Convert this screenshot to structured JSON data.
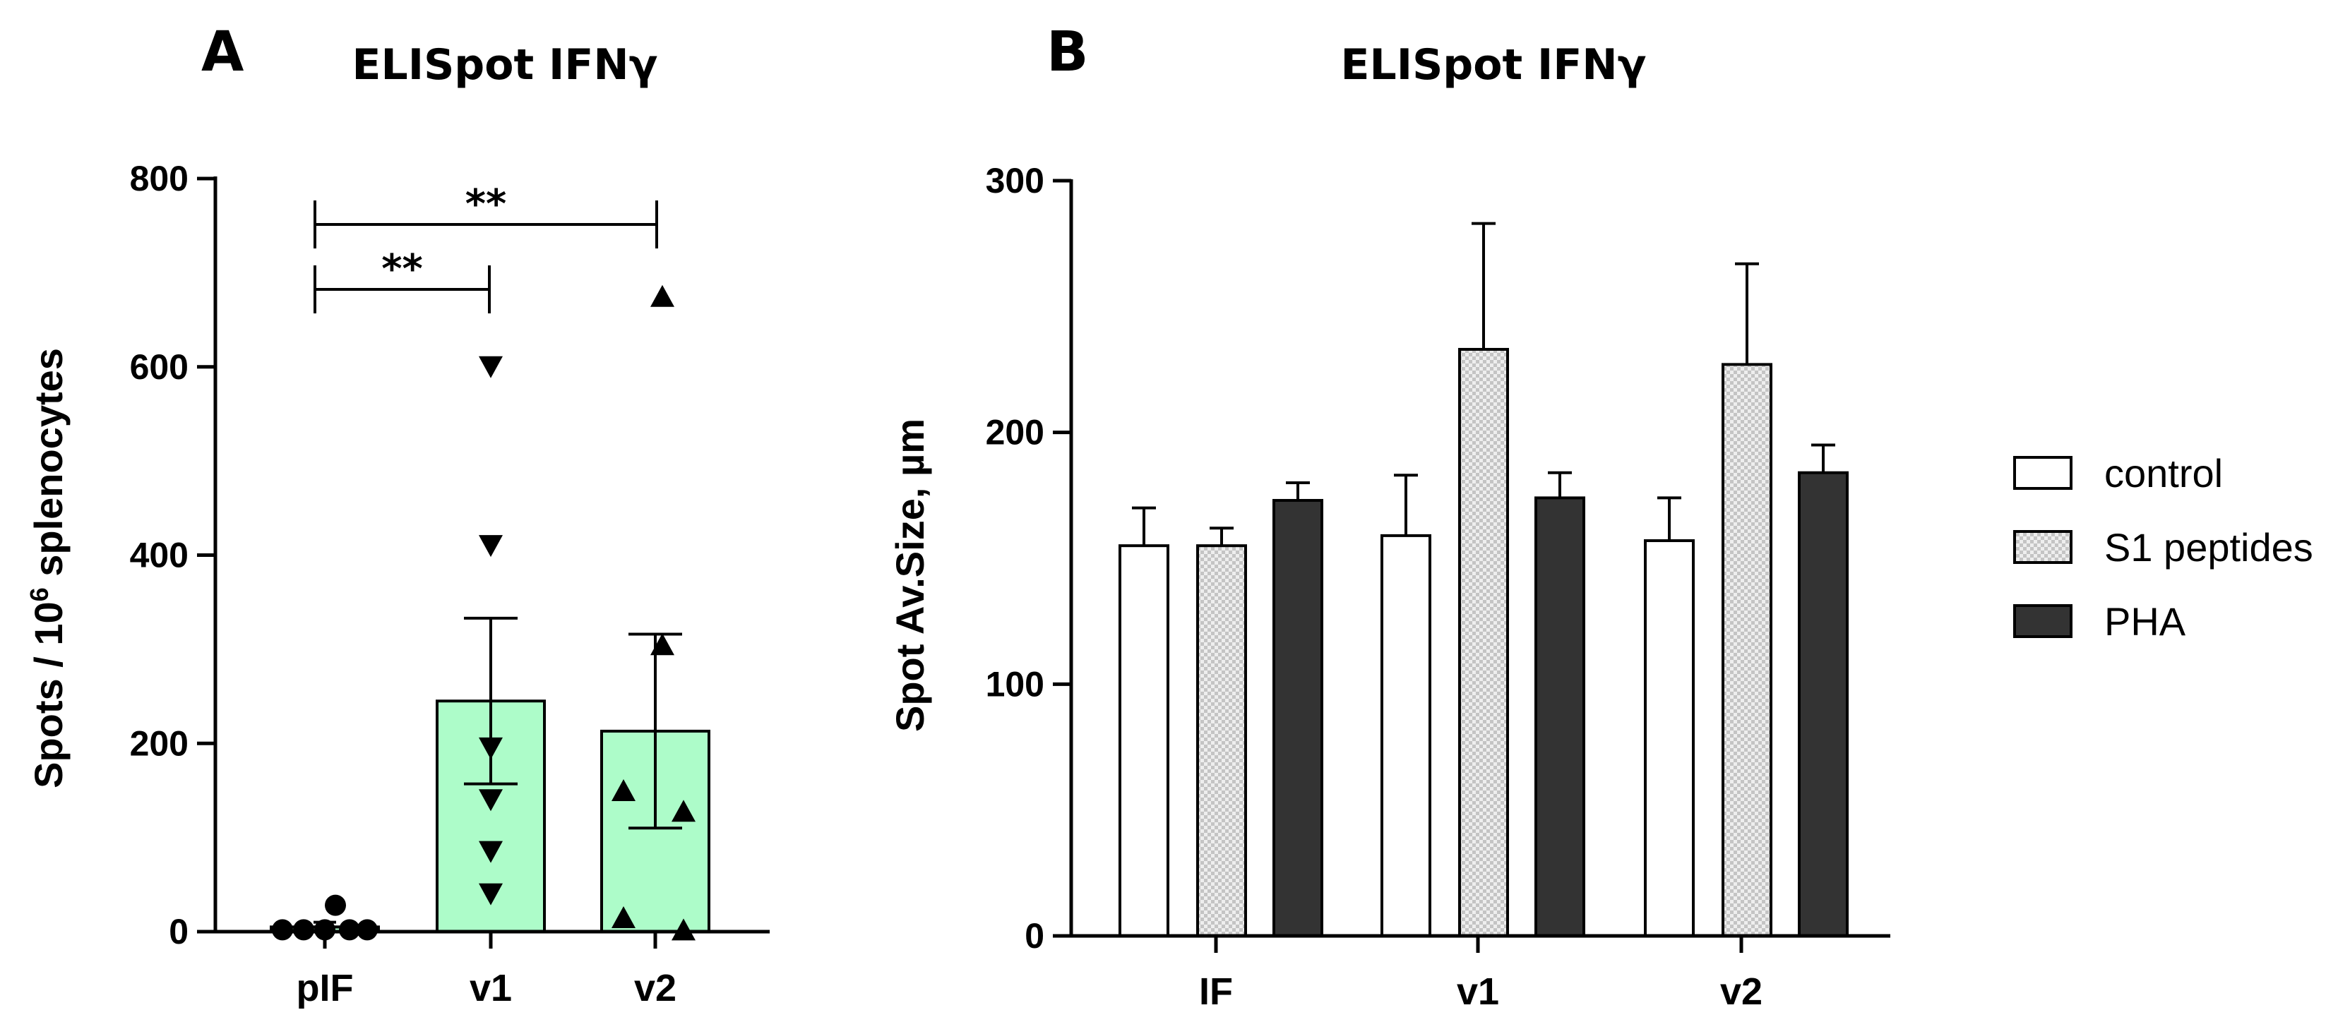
{
  "colors": {
    "green_bar": "#adfcc9",
    "control": "#ffffff",
    "s1_peptides": "#dedede",
    "pha": "#333333",
    "axis": "#000000"
  },
  "chart_data": [
    {
      "panel": "A",
      "type": "bar",
      "title": "ELISpot IFNγ",
      "xlabel": "",
      "ylabel": "Spots / 10^6 splenocytes",
      "ylabel_parts": {
        "pre": "Spots / 10",
        "sup": "6",
        "post": " splenocytes"
      },
      "ylim": [
        0,
        800
      ],
      "yticks": [
        0,
        200,
        400,
        600,
        800
      ],
      "categories": [
        "pIF",
        "v1",
        "v2"
      ],
      "means": [
        5,
        245,
        213
      ],
      "sem": [
        5,
        88,
        103
      ],
      "points": [
        {
          "category": "pIF",
          "marker": "circle",
          "values": [
            2,
            2,
            2,
            28,
            2,
            2
          ]
        },
        {
          "category": "v1",
          "marker": "triangle-down",
          "values": [
            600,
            410,
            195,
            140,
            85,
            40
          ]
        },
        {
          "category": "v2",
          "marker": "triangle-up",
          "values": [
            675,
            305,
            150,
            128,
            15,
            2
          ]
        }
      ],
      "significance": [
        {
          "from": "pIF",
          "to": "v1",
          "label": "**"
        },
        {
          "from": "pIF",
          "to": "v2",
          "label": "**"
        }
      ]
    },
    {
      "panel": "B",
      "type": "bar",
      "title": "ELISpot IFNγ",
      "xlabel": "",
      "ylabel": "Spot Av.Size, µm",
      "ylim": [
        0,
        300
      ],
      "yticks": [
        0,
        100,
        200,
        300
      ],
      "categories": [
        "IF",
        "v1",
        "v2"
      ],
      "series": [
        {
          "name": "control",
          "values": [
            155,
            159,
            157
          ],
          "errors": [
            15,
            24,
            17
          ]
        },
        {
          "name": "S1 peptides",
          "values": [
            155,
            233,
            227
          ],
          "errors": [
            7,
            50,
            40
          ]
        },
        {
          "name": "PHA",
          "values": [
            173,
            174,
            184
          ],
          "errors": [
            7,
            10,
            11
          ]
        }
      ],
      "legend": [
        "control",
        "S1 peptides",
        "PHA"
      ]
    }
  ]
}
